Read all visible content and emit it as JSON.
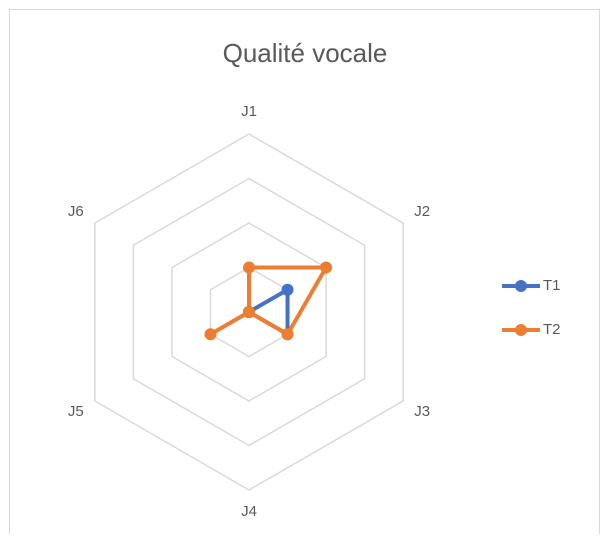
{
  "chart_data": {
    "type": "radar",
    "title": "Qualité vocale",
    "categories": [
      "J1",
      "J2",
      "J3",
      "J4",
      "J5",
      "J6"
    ],
    "series": [
      {
        "name": "T1",
        "color": "#4472c4",
        "values": [
          0,
          1,
          1,
          0,
          0,
          0
        ]
      },
      {
        "name": "T2",
        "color": "#ed7d31",
        "values": [
          1,
          2,
          1,
          0,
          1,
          0
        ]
      }
    ],
    "rlim": [
      0,
      4
    ],
    "rticks": [
      0,
      1,
      2,
      3,
      4
    ],
    "grid": true,
    "legend": "right"
  }
}
